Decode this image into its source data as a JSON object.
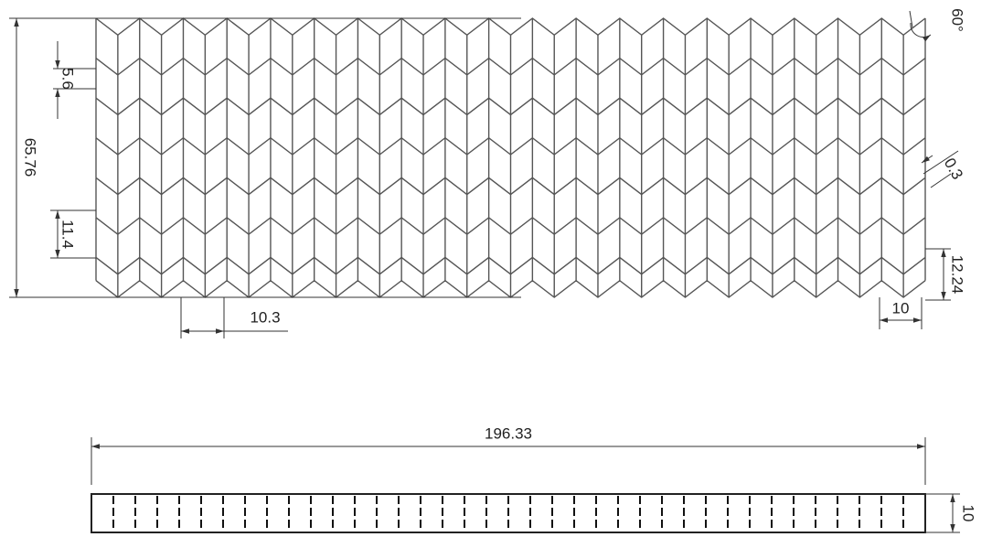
{
  "dimensions": {
    "angle": "60°",
    "strut_spacing": "5.6",
    "total_height": "65.76",
    "wall_thickness": "0.3",
    "row_pitch": "11.4",
    "cell_height": "12.24",
    "cell_offset": "10.3",
    "cell_width": "10",
    "total_length": "196.33",
    "thickness": "10"
  }
}
